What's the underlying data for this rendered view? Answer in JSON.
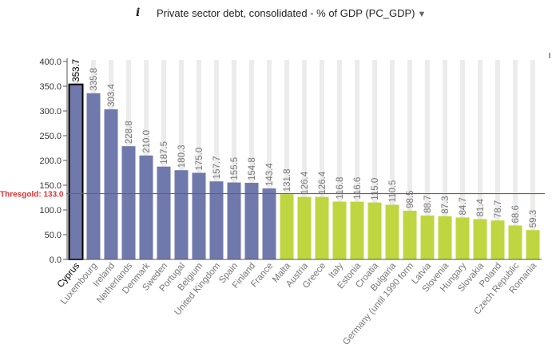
{
  "header": {
    "info_icon": "i",
    "indicator_label": "Private sector debt, consolidated - % of GDP (PC_GDP)",
    "dropdown_icon": "caret-down-icon"
  },
  "chart_data": {
    "type": "bar",
    "title": "",
    "xlabel": "",
    "ylabel": "",
    "ylim": [
      0,
      400
    ],
    "yticks": [
      "0.0",
      "50.0",
      "100.0",
      "150.0",
      "200.0",
      "250.0",
      "300.0",
      "350.0",
      "400.0"
    ],
    "grid": "vertical bands",
    "threshold": {
      "label": "Thresgold: 133.0",
      "value": 133.0,
      "color": "#e03030"
    },
    "colors": {
      "above": "#7079ab",
      "below": "#bfd641",
      "highlight_border": "#000000"
    },
    "highlighted": "Cyprus",
    "categories": [
      "Cyprus",
      "Luxembourg",
      "Ireland",
      "Netherlands",
      "Denmark",
      "Sweden",
      "Portugal",
      "Belgium",
      "United Kingdom",
      "Spain",
      "Finland",
      "France",
      "Malta",
      "Austria",
      "Greece",
      "Italy",
      "Estonia",
      "Croatia",
      "Bulgaria",
      "Germany (until 1990 form",
      "Latvia",
      "Slovenia",
      "Hungary",
      "Slovakia",
      "Poland",
      "Czech Republic",
      "Romania"
    ],
    "values": [
      353.7,
      335.8,
      303.4,
      228.8,
      210.0,
      187.5,
      180.3,
      175.0,
      157.7,
      155.5,
      154.8,
      143.4,
      131.8,
      126.4,
      126.4,
      116.8,
      116.6,
      115.0,
      110.5,
      98.5,
      88.7,
      87.3,
      84.7,
      81.4,
      78.7,
      68.6,
      59.3
    ],
    "value_labels": [
      "353.7",
      "335.8",
      "303.4",
      "228.8",
      "210.0",
      "187.5",
      "180.3",
      "175.0",
      "157.7",
      "155.5",
      "154.8",
      "143.4",
      "131.8",
      "126.4",
      "126.4",
      "116.8",
      "116.6",
      "115.0",
      "110.5",
      "98.5",
      "88.7",
      "87.3",
      "84.7",
      "81.4",
      "78.7",
      "68.6",
      "59.3"
    ]
  }
}
